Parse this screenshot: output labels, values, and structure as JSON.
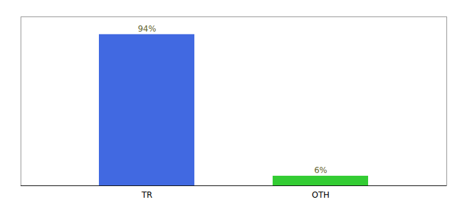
{
  "chart_data": {
    "type": "bar",
    "categories": [
      "TR",
      "OTH"
    ],
    "values": [
      94,
      6
    ],
    "colors": [
      "#4169e1",
      "#33cc33"
    ],
    "value_labels": [
      "94%",
      "6%"
    ],
    "data_labels": true,
    "ylim": [
      0,
      105
    ],
    "tick_labels": "x",
    "grid": false
  }
}
